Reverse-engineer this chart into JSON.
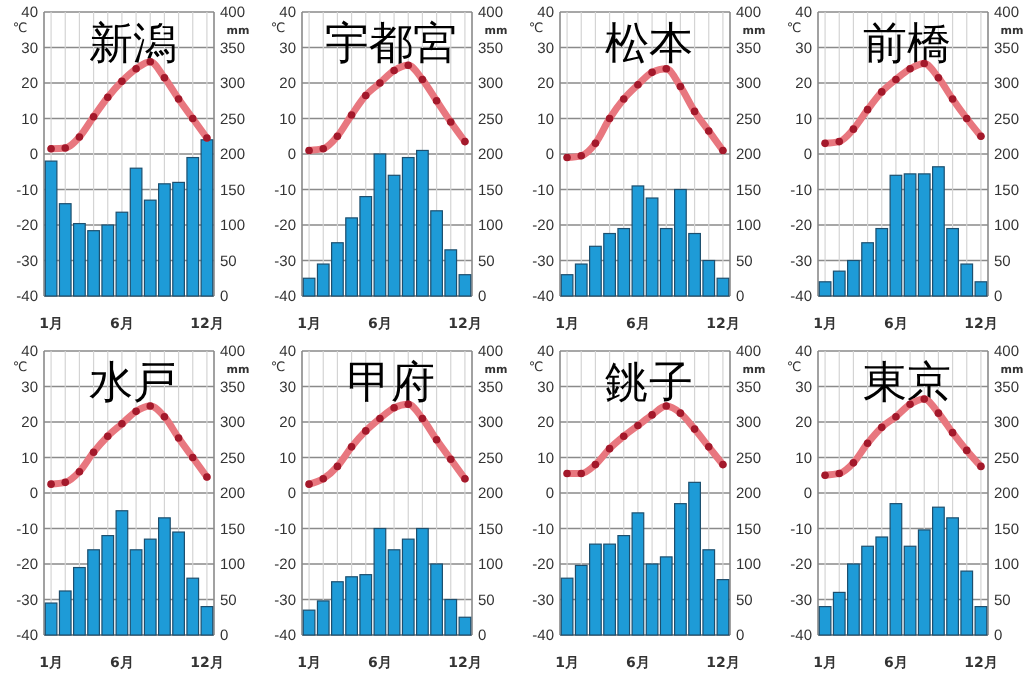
{
  "chart_data": [
    {
      "type": "bar",
      "title": "新潟",
      "categories": [
        "1月",
        null,
        null,
        null,
        null,
        "6月",
        null,
        null,
        null,
        null,
        null,
        "12月"
      ],
      "ylabel": "℃",
      "y2label": "mm",
      "ylim": [
        -40,
        40
      ],
      "yticks": [
        -40,
        -30,
        -20,
        -10,
        0,
        10,
        20,
        30,
        40
      ],
      "y2lim": [
        0,
        400
      ],
      "y2ticks": [
        0,
        50,
        100,
        150,
        200,
        250,
        300,
        350,
        400
      ],
      "grid": true,
      "marker": "circle",
      "series": [
        {
          "axis": "y2",
          "color": "#1e9bd7",
          "values": [
            190,
            130,
            102,
            92,
            100,
            118,
            180,
            135,
            158,
            160,
            195,
            220
          ]
        },
        {
          "type": "line",
          "color": "#e8777f",
          "values": [
            1.5,
            1.7,
            4.8,
            10.5,
            16,
            20.5,
            24,
            26,
            21.5,
            15.5,
            10,
            4.5
          ]
        }
      ]
    },
    {
      "type": "bar",
      "title": "宇都宮",
      "categories": [
        "1月",
        null,
        null,
        null,
        null,
        "6月",
        null,
        null,
        null,
        null,
        null,
        "12月"
      ],
      "ylabel": "℃",
      "y2label": "mm",
      "ylim": [
        -40,
        40
      ],
      "yticks": [
        -40,
        -30,
        -20,
        -10,
        0,
        10,
        20,
        30,
        40
      ],
      "y2lim": [
        0,
        400
      ],
      "y2ticks": [
        0,
        50,
        100,
        150,
        200,
        250,
        300,
        350,
        400
      ],
      "grid": true,
      "marker": "circle",
      "series": [
        {
          "axis": "y2",
          "color": "#1e9bd7",
          "values": [
            25,
            45,
            75,
            110,
            140,
            200,
            170,
            195,
            205,
            120,
            65,
            30
          ]
        },
        {
          "type": "line",
          "color": "#e8777f",
          "values": [
            1,
            1.5,
            5,
            11,
            16.5,
            20,
            23.5,
            25,
            21,
            15,
            9,
            3.5
          ]
        }
      ]
    },
    {
      "type": "bar",
      "title": "松本",
      "categories": [
        "1月",
        null,
        null,
        null,
        null,
        "6月",
        null,
        null,
        null,
        null,
        null,
        "12月"
      ],
      "ylabel": "℃",
      "y2label": "mm",
      "ylim": [
        -40,
        40
      ],
      "yticks": [
        -40,
        -30,
        -20,
        -10,
        0,
        10,
        20,
        30,
        40
      ],
      "y2lim": [
        0,
        400
      ],
      "y2ticks": [
        0,
        50,
        100,
        150,
        200,
        250,
        300,
        350,
        400
      ],
      "grid": true,
      "marker": "circle",
      "series": [
        {
          "axis": "y2",
          "color": "#1e9bd7",
          "values": [
            30,
            45,
            70,
            88,
            95,
            155,
            138,
            95,
            150,
            88,
            50,
            25
          ]
        },
        {
          "type": "line",
          "color": "#e8777f",
          "values": [
            -1,
            -0.5,
            3,
            10,
            15.5,
            19.5,
            23,
            24,
            19,
            12,
            6.5,
            1
          ]
        }
      ]
    },
    {
      "type": "bar",
      "title": "前橋",
      "categories": [
        "1月",
        null,
        null,
        null,
        null,
        "6月",
        null,
        null,
        null,
        null,
        null,
        "12月"
      ],
      "ylabel": "℃",
      "y2label": "mm",
      "ylim": [
        -40,
        40
      ],
      "yticks": [
        -40,
        -30,
        -20,
        -10,
        0,
        10,
        20,
        30,
        40
      ],
      "y2lim": [
        0,
        400
      ],
      "y2ticks": [
        0,
        50,
        100,
        150,
        200,
        250,
        300,
        350,
        400
      ],
      "grid": true,
      "marker": "circle",
      "series": [
        {
          "axis": "y2",
          "color": "#1e9bd7",
          "values": [
            20,
            35,
            50,
            75,
            95,
            170,
            172,
            172,
            182,
            95,
            45,
            20
          ]
        },
        {
          "type": "line",
          "color": "#e8777f",
          "values": [
            3,
            3.5,
            7,
            12.5,
            17.5,
            21,
            24,
            25.5,
            21.5,
            15.5,
            10,
            5
          ]
        }
      ]
    },
    {
      "type": "bar",
      "title": "水戸",
      "categories": [
        "1月",
        null,
        null,
        null,
        null,
        "6月",
        null,
        null,
        null,
        null,
        null,
        "12月"
      ],
      "ylabel": "℃",
      "y2label": "mm",
      "ylim": [
        -40,
        40
      ],
      "yticks": [
        -40,
        -30,
        -20,
        -10,
        0,
        10,
        20,
        30,
        40
      ],
      "y2lim": [
        0,
        400
      ],
      "y2ticks": [
        0,
        50,
        100,
        150,
        200,
        250,
        300,
        350,
        400
      ],
      "grid": true,
      "marker": "circle",
      "series": [
        {
          "axis": "y2",
          "color": "#1e9bd7",
          "values": [
            45,
            62,
            95,
            120,
            140,
            175,
            120,
            135,
            165,
            145,
            80,
            40
          ]
        },
        {
          "type": "line",
          "color": "#e8777f",
          "values": [
            2.5,
            3,
            6,
            11.5,
            16,
            19.5,
            23,
            24.5,
            21.5,
            15.5,
            10,
            4.5
          ]
        }
      ]
    },
    {
      "type": "bar",
      "title": "甲府",
      "categories": [
        "1月",
        null,
        null,
        null,
        null,
        "6月",
        null,
        null,
        null,
        null,
        null,
        "12月"
      ],
      "ylabel": "℃",
      "y2label": "mm",
      "ylim": [
        -40,
        40
      ],
      "yticks": [
        -40,
        -30,
        -20,
        -10,
        0,
        10,
        20,
        30,
        40
      ],
      "y2lim": [
        0,
        400
      ],
      "y2ticks": [
        0,
        50,
        100,
        150,
        200,
        250,
        300,
        350,
        400
      ],
      "grid": true,
      "marker": "circle",
      "series": [
        {
          "axis": "y2",
          "color": "#1e9bd7",
          "values": [
            35,
            48,
            75,
            82,
            85,
            150,
            120,
            135,
            150,
            100,
            50,
            25
          ]
        },
        {
          "type": "line",
          "color": "#e8777f",
          "values": [
            2.5,
            4,
            7.5,
            13,
            17.5,
            21,
            24,
            25,
            21,
            15,
            9.5,
            4
          ]
        }
      ]
    },
    {
      "type": "bar",
      "title": "銚子",
      "categories": [
        "1月",
        null,
        null,
        null,
        null,
        "6月",
        null,
        null,
        null,
        null,
        null,
        "12月"
      ],
      "ylabel": "℃",
      "y2label": "mm",
      "ylim": [
        -40,
        40
      ],
      "yticks": [
        -40,
        -30,
        -20,
        -10,
        0,
        10,
        20,
        30,
        40
      ],
      "y2lim": [
        0,
        400
      ],
      "y2ticks": [
        0,
        50,
        100,
        150,
        200,
        250,
        300,
        350,
        400
      ],
      "grid": true,
      "marker": "circle",
      "series": [
        {
          "axis": "y2",
          "color": "#1e9bd7",
          "values": [
            80,
            98,
            128,
            128,
            140,
            172,
            100,
            110,
            185,
            215,
            120,
            78
          ]
        },
        {
          "type": "line",
          "color": "#e8777f",
          "values": [
            5.5,
            5.5,
            8,
            12.5,
            16,
            19,
            22,
            24.5,
            22.5,
            18,
            13,
            8
          ]
        }
      ]
    },
    {
      "type": "bar",
      "title": "東京",
      "categories": [
        "1月",
        null,
        null,
        null,
        null,
        "6月",
        null,
        null,
        null,
        null,
        null,
        "12月"
      ],
      "ylabel": "℃",
      "y2label": "mm",
      "ylim": [
        -40,
        40
      ],
      "yticks": [
        -40,
        -30,
        -20,
        -10,
        0,
        10,
        20,
        30,
        40
      ],
      "y2lim": [
        0,
        400
      ],
      "y2ticks": [
        0,
        50,
        100,
        150,
        200,
        250,
        300,
        350,
        400
      ],
      "grid": true,
      "marker": "circle",
      "series": [
        {
          "axis": "y2",
          "color": "#1e9bd7",
          "values": [
            40,
            60,
            100,
            125,
            138,
            185,
            125,
            148,
            180,
            165,
            90,
            40
          ]
        },
        {
          "type": "line",
          "color": "#e8777f",
          "values": [
            5,
            5.5,
            8.5,
            14,
            18.5,
            21.5,
            25,
            26.5,
            22.5,
            17,
            12,
            7.5
          ]
        }
      ]
    }
  ]
}
